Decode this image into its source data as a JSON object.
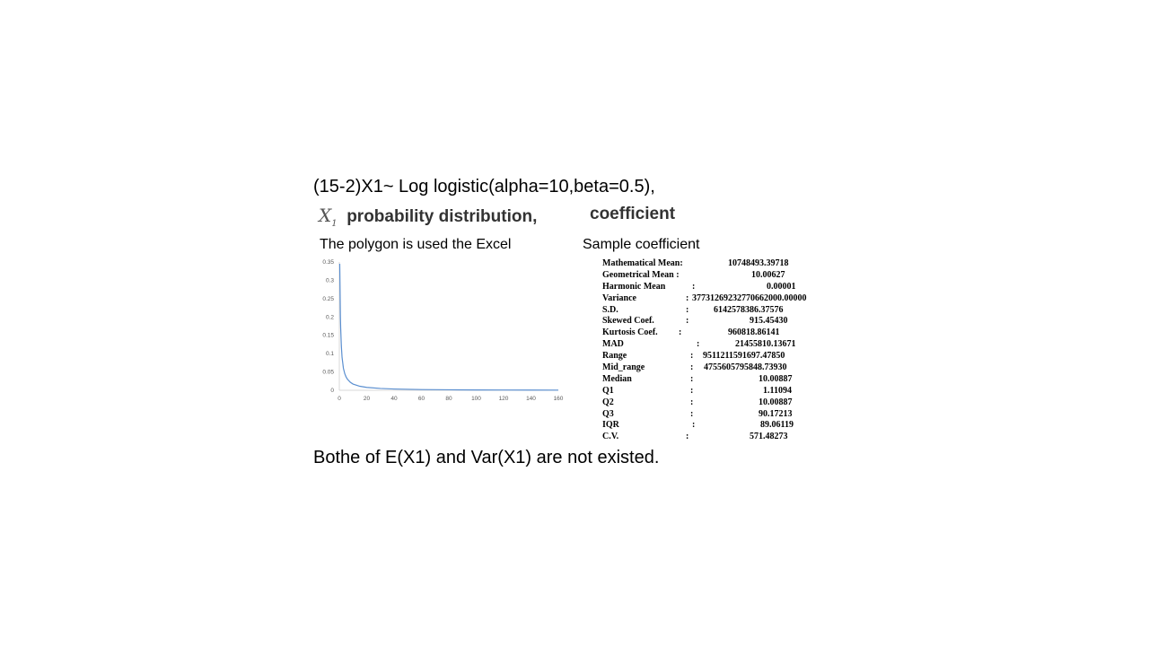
{
  "title": "(15-2)X1~ Log logistic(alpha=10,beta=0.5),",
  "subtitle": {
    "symbol": "X",
    "symbol_sub": "1",
    "label": "probability distribution,",
    "coefficient": "coefficient"
  },
  "polygon_label": "The polygon is used the Excel",
  "sample_label": "Sample coefficient",
  "footer": "Bothe of E(X1) and Var(X1) are not existed.",
  "stats": [
    {
      "name": "Mathematical Mean:",
      "sep": "",
      "value": "10748493.39718"
    },
    {
      "name": "Geometrical Mean :",
      "sep": "",
      "value": "10.00627"
    },
    {
      "name": "Harmonic Mean",
      "sep": ":",
      "value": "0.00001"
    },
    {
      "name": "Variance",
      "sep": ":",
      "value": "37731269232770662000.00000"
    },
    {
      "name": "S.D.",
      "sep": ":",
      "value": "6142578386.37576"
    },
    {
      "name": "Skewed Coef.",
      "sep": ":",
      "value": "915.45430"
    },
    {
      "name": "Kurtosis Coef.",
      "sep": ":",
      "value": "960818.86141"
    },
    {
      "name": "MAD",
      "sep": ":",
      "value": "21455810.13671"
    },
    {
      "name": "Range",
      "sep": ":",
      "value": "9511211591697.47850"
    },
    {
      "name": "Mid_range",
      "sep": ":",
      "value": "4755605795848.73930"
    },
    {
      "name": "Median",
      "sep": ":",
      "value": "10.00887"
    },
    {
      "name": "Q1",
      "sep": ":",
      "value": "1.11094"
    },
    {
      "name": "Q2",
      "sep": ":",
      "value": "10.00887"
    },
    {
      "name": "Q3",
      "sep": ":",
      "value": "90.17213"
    },
    {
      "name": "IQR",
      "sep": ":",
      "value": "89.06119"
    },
    {
      "name": "C.V.",
      "sep": ":",
      "value": "571.48273"
    }
  ],
  "chart_data": {
    "type": "line",
    "title": "",
    "xlabel": "",
    "ylabel": "",
    "xlim": [
      0,
      160
    ],
    "ylim": [
      0,
      0.35
    ],
    "x_ticks": [
      "0",
      "20",
      "40",
      "60",
      "80",
      "100",
      "120",
      "140",
      "160"
    ],
    "y_ticks": [
      "0",
      "0.05",
      "0.1",
      "0.15",
      "0.2",
      "0.25",
      "0.3",
      "0.35"
    ],
    "grid": false,
    "line_color": "#5b8fd0",
    "series": [
      {
        "x": [
          0.3,
          0.5,
          0.8,
          1,
          1.5,
          2,
          3,
          4,
          5,
          6,
          8,
          10,
          15,
          20,
          30,
          40,
          60,
          80,
          100,
          120,
          140,
          160
        ],
        "y": [
          0.345,
          0.29,
          0.2,
          0.17,
          0.12,
          0.09,
          0.06,
          0.045,
          0.036,
          0.03,
          0.022,
          0.017,
          0.011,
          0.008,
          0.005,
          0.0035,
          0.002,
          0.0014,
          0.001,
          0.0008,
          0.0006,
          0.0005
        ]
      }
    ]
  }
}
